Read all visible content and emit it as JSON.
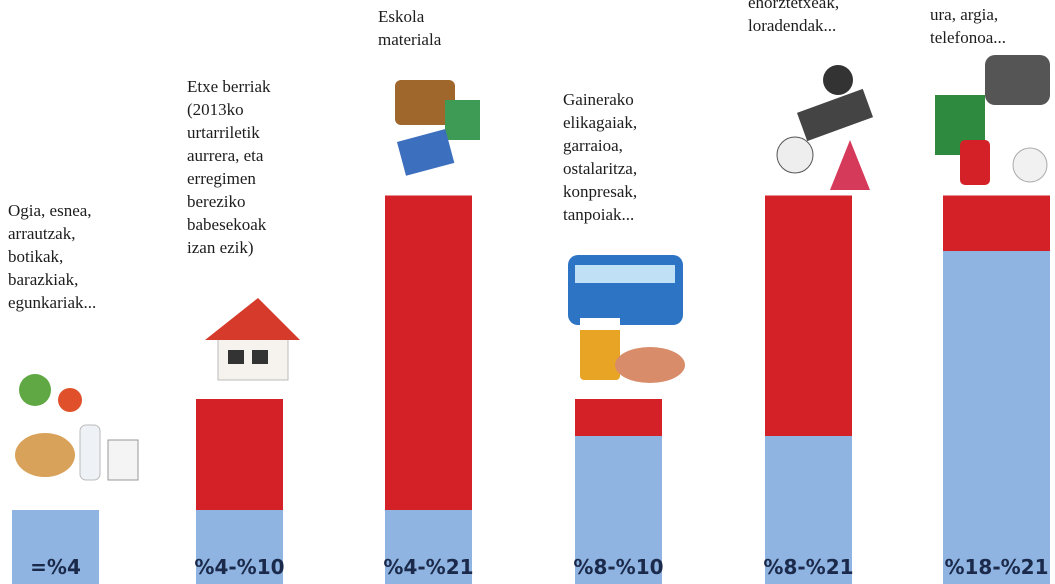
{
  "chart_data": {
    "type": "bar",
    "categories": [
      [
        "Ogia, esnea,",
        "arrautzak,",
        "botikak,",
        "barazkiak,",
        "egunkariak..."
      ],
      [
        "Etxe berriak",
        "(2013ko",
        "urtarriletik",
        "aurrera, eta",
        "erregimen",
        "bereziko",
        "babesekoak",
        "izan ezik)"
      ],
      [
        "Eskola",
        "materiala"
      ],
      [
        "Gainerako",
        "elikagaiak,",
        "garraioa,",
        "ostalaritza,",
        "konpresak,",
        "tanpoiak..."
      ],
      [
        "ehorztetxeak,",
        "loradendak..."
      ],
      [
        "ura, argia,",
        "telefonoa..."
      ]
    ],
    "value_labels": [
      "=%4",
      "%4-%10",
      "%4-%21",
      "%8-%10",
      "%8-%21",
      "%18-%21"
    ],
    "series": [
      {
        "color": "#8fb4e2",
        "values": [
          4,
          4,
          4,
          8,
          8,
          18
        ]
      },
      {
        "color": "#d42127",
        "values": [
          4,
          10,
          21,
          10,
          21,
          21
        ]
      }
    ]
  }
}
